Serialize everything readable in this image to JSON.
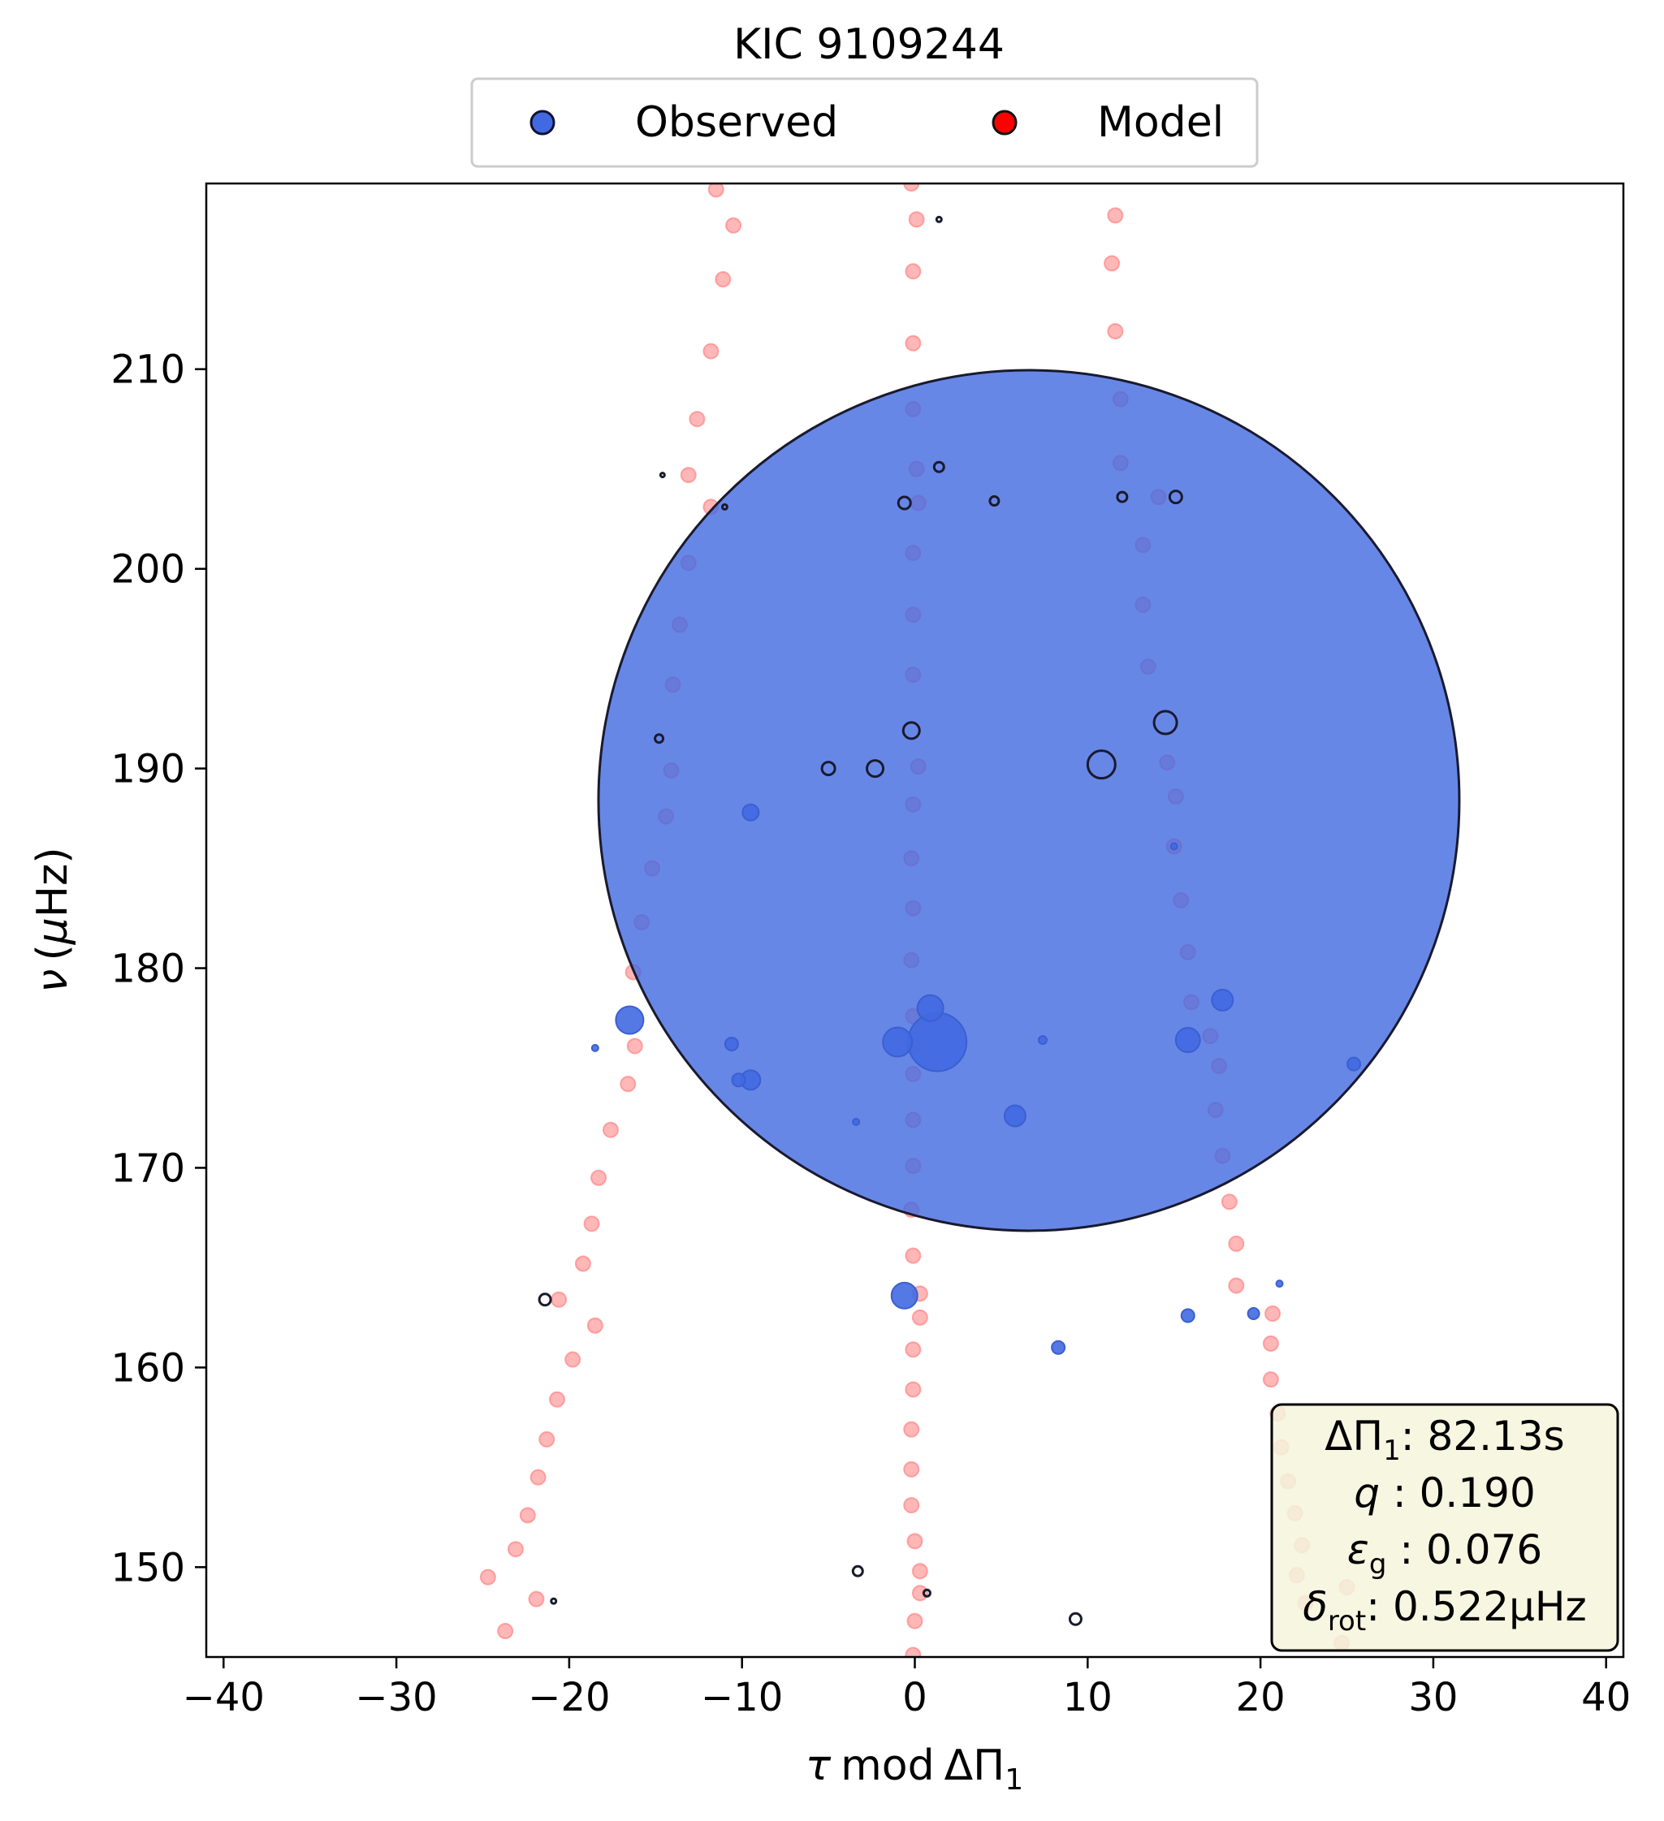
{
  "chart_data": {
    "type": "scatter",
    "title": "KIC 9109244",
    "xlabel": "τ mod ΔΠ₁",
    "ylabel": "ν (μHz)",
    "xlim": [
      -41,
      41
    ],
    "ylim": [
      145.5,
      219.3
    ],
    "xticks": [
      "−40",
      "−30",
      "−20",
      "−10",
      "0",
      "10",
      "20",
      "30",
      "40"
    ],
    "yticks": [
      "150",
      "160",
      "170",
      "180",
      "190",
      "200",
      "210"
    ],
    "xtick_values": [
      -40,
      -30,
      -20,
      -10,
      0,
      10,
      20,
      30,
      40
    ],
    "ytick_values": [
      150,
      160,
      170,
      180,
      190,
      200,
      210
    ],
    "grid": false,
    "legend": {
      "placement": "top-center, above plot",
      "entries": [
        {
          "label": "Observed",
          "color": "#4169e1"
        },
        {
          "label": "Model",
          "color": "#ff0000"
        }
      ]
    },
    "annotation": {
      "placement": "bottom-right",
      "lines": [
        {
          "symbol": "ΔΠ",
          "sub": "1",
          "sep": ": ",
          "value": "82.13s"
        },
        {
          "symbol": "q",
          "sub": "",
          "sep": " :  ",
          "value": "0.190"
        },
        {
          "symbol": "ε",
          "sub": "g",
          "sep": " : ",
          "value": "0.076"
        },
        {
          "symbol": "δ",
          "sub": "rot",
          "sep": ": ",
          "value": "0.522μHz"
        }
      ],
      "background": "#f5f5dc"
    },
    "series": [
      {
        "name": "Model",
        "color": "#ff9999",
        "points": [
          [
            -11.5,
            219.0
          ],
          [
            -10.5,
            217.2
          ],
          [
            -11.1,
            214.5
          ],
          [
            -11.8,
            210.9
          ],
          [
            -12.6,
            207.5
          ],
          [
            -13.1,
            204.7
          ],
          [
            -11.8,
            203.1
          ],
          [
            -13.1,
            200.3
          ],
          [
            -13.6,
            197.2
          ],
          [
            -14.0,
            194.2
          ],
          [
            -14.1,
            189.9
          ],
          [
            -14.4,
            187.6
          ],
          [
            -15.2,
            185.0
          ],
          [
            -15.8,
            182.3
          ],
          [
            -16.3,
            179.8
          ],
          [
            -16.2,
            176.1
          ],
          [
            -16.6,
            174.2
          ],
          [
            -17.6,
            171.9
          ],
          [
            -18.3,
            169.5
          ],
          [
            -18.7,
            167.2
          ],
          [
            -19.2,
            165.2
          ],
          [
            -20.6,
            163.4
          ],
          [
            -18.5,
            162.1
          ],
          [
            -19.8,
            160.4
          ],
          [
            -20.7,
            158.4
          ],
          [
            -21.3,
            156.4
          ],
          [
            -21.8,
            154.5
          ],
          [
            -22.4,
            152.6
          ],
          [
            -23.1,
            150.9
          ],
          [
            -24.7,
            149.5
          ],
          [
            -21.9,
            148.4
          ],
          [
            -23.7,
            146.8
          ],
          [
            -0.2,
            219.3
          ],
          [
            0.1,
            217.5
          ],
          [
            -0.1,
            214.9
          ],
          [
            -0.1,
            211.3
          ],
          [
            -0.1,
            208.0
          ],
          [
            0.1,
            205.0
          ],
          [
            0.2,
            203.3
          ],
          [
            -0.1,
            200.8
          ],
          [
            -0.1,
            197.7
          ],
          [
            -0.1,
            194.7
          ],
          [
            0.2,
            190.1
          ],
          [
            -0.1,
            188.2
          ],
          [
            -0.2,
            185.5
          ],
          [
            -0.1,
            183.0
          ],
          [
            -0.2,
            180.4
          ],
          [
            -0.1,
            177.6
          ],
          [
            -0.1,
            176.1
          ],
          [
            -0.1,
            174.7
          ],
          [
            -0.1,
            172.4
          ],
          [
            -0.1,
            170.1
          ],
          [
            -0.2,
            167.9
          ],
          [
            -0.1,
            165.6
          ],
          [
            0.3,
            163.7
          ],
          [
            0.3,
            162.5
          ],
          [
            -0.1,
            160.9
          ],
          [
            -0.1,
            158.9
          ],
          [
            -0.2,
            156.9
          ],
          [
            -0.2,
            154.9
          ],
          [
            -0.2,
            153.1
          ],
          [
            0.0,
            151.3
          ],
          [
            0.3,
            149.8
          ],
          [
            0.3,
            148.7
          ],
          [
            0.0,
            147.3
          ],
          [
            -0.1,
            145.6
          ],
          [
            11.6,
            217.7
          ],
          [
            11.4,
            215.3
          ],
          [
            11.6,
            211.9
          ],
          [
            11.9,
            208.5
          ],
          [
            11.9,
            205.3
          ],
          [
            14.1,
            203.6
          ],
          [
            13.2,
            201.2
          ],
          [
            13.2,
            198.2
          ],
          [
            13.5,
            195.1
          ],
          [
            14.6,
            190.3
          ],
          [
            15.1,
            188.6
          ],
          [
            15.0,
            186.1
          ],
          [
            15.4,
            183.4
          ],
          [
            15.8,
            180.8
          ],
          [
            16.0,
            178.3
          ],
          [
            17.1,
            176.6
          ],
          [
            17.6,
            175.1
          ],
          [
            17.4,
            172.9
          ],
          [
            17.8,
            170.6
          ],
          [
            18.2,
            168.3
          ],
          [
            18.6,
            166.2
          ],
          [
            18.6,
            164.1
          ],
          [
            20.7,
            162.7
          ],
          [
            20.6,
            161.2
          ],
          [
            20.6,
            159.4
          ],
          [
            21.0,
            157.7
          ],
          [
            21.2,
            156.0
          ],
          [
            21.6,
            154.3
          ],
          [
            22.0,
            152.7
          ],
          [
            22.4,
            151.1
          ],
          [
            22.1,
            149.6
          ],
          [
            25.0,
            149.0
          ],
          [
            22.6,
            148.2
          ],
          [
            24.7,
            146.2
          ]
        ]
      },
      {
        "name": "Observed",
        "color": "#4169e1",
        "points": [
          {
            "x": 6.6,
            "y": 188.4,
            "r": 530
          },
          {
            "x": 1.3,
            "y": 176.3,
            "r": 36
          },
          {
            "x": 0.9,
            "y": 178.0,
            "r": 16
          },
          {
            "x": -1.0,
            "y": 176.3,
            "r": 18
          },
          {
            "x": -16.5,
            "y": 177.4,
            "r": 17
          },
          {
            "x": -9.5,
            "y": 174.4,
            "r": 12
          },
          {
            "x": -10.2,
            "y": 174.4,
            "r": 8
          },
          {
            "x": -10.6,
            "y": 176.2,
            "r": 8
          },
          {
            "x": -18.5,
            "y": 176.0,
            "r": 4
          },
          {
            "x": -3.4,
            "y": 172.3,
            "r": 4
          },
          {
            "x": 5.8,
            "y": 172.6,
            "r": 13
          },
          {
            "x": 7.4,
            "y": 176.4,
            "r": 5
          },
          {
            "x": 15.8,
            "y": 176.4,
            "r": 15
          },
          {
            "x": 17.8,
            "y": 178.4,
            "r": 13
          },
          {
            "x": 25.4,
            "y": 175.2,
            "r": 8
          },
          {
            "x": -9.5,
            "y": 187.8,
            "r": 10
          },
          {
            "x": -0.6,
            "y": 163.6,
            "r": 16
          },
          {
            "x": 8.3,
            "y": 161.0,
            "r": 8
          },
          {
            "x": 15.8,
            "y": 162.6,
            "r": 8
          },
          {
            "x": 19.6,
            "y": 162.7,
            "r": 7
          },
          {
            "x": 21.1,
            "y": 164.2,
            "r": 4
          },
          {
            "x": 15.0,
            "y": 186.1,
            "r": 4
          },
          {
            "x": -21.4,
            "y": 163.4,
            "r": 7,
            "edge": true
          },
          {
            "x": -14.8,
            "y": 191.5,
            "r": 5,
            "edge": true
          },
          {
            "x": -5.0,
            "y": 190.0,
            "r": 8,
            "edge": true
          },
          {
            "x": -2.3,
            "y": 190.0,
            "r": 10,
            "edge": true
          },
          {
            "x": -0.2,
            "y": 191.9,
            "r": 10,
            "edge": true
          },
          {
            "x": 10.8,
            "y": 190.2,
            "r": 17,
            "edge": true
          },
          {
            "x": 14.5,
            "y": 192.3,
            "r": 14,
            "edge": true
          },
          {
            "x": -14.6,
            "y": 204.7,
            "r": 2.5,
            "edge": true
          },
          {
            "x": -11.0,
            "y": 203.1,
            "r": 3,
            "edge": true
          },
          {
            "x": -0.6,
            "y": 203.3,
            "r": 7.5,
            "edge": true
          },
          {
            "x": 1.4,
            "y": 205.1,
            "r": 6,
            "edge": true
          },
          {
            "x": 4.6,
            "y": 203.4,
            "r": 5.5,
            "edge": true
          },
          {
            "x": 12.0,
            "y": 203.6,
            "r": 6,
            "edge": true
          },
          {
            "x": 15.1,
            "y": 203.6,
            "r": 7.5,
            "edge": true
          },
          {
            "x": 1.4,
            "y": 217.5,
            "r": 3,
            "edge": true
          },
          {
            "x": -3.3,
            "y": 149.8,
            "r": 6,
            "edge": true
          },
          {
            "x": 0.7,
            "y": 148.7,
            "r": 4,
            "edge": true
          },
          {
            "x": -20.9,
            "y": 148.3,
            "r": 3,
            "edge": true
          },
          {
            "x": 9.3,
            "y": 147.4,
            "r": 7,
            "edge": true
          }
        ]
      }
    ]
  }
}
